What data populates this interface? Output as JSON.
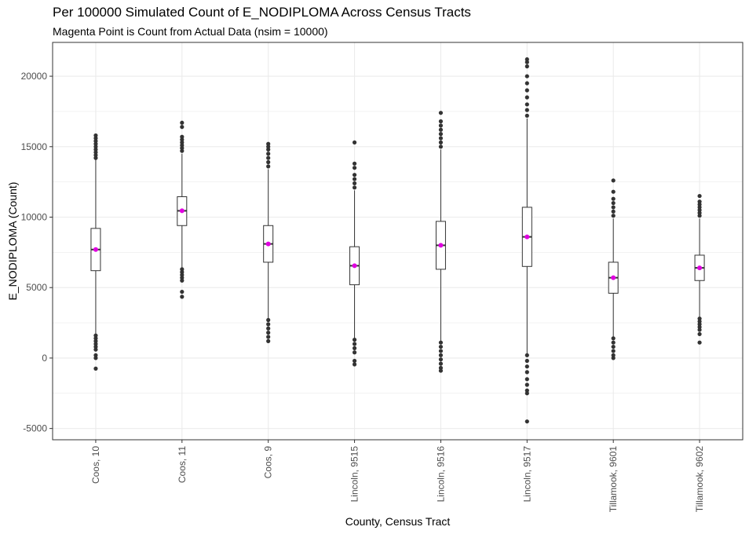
{
  "chart_data": {
    "type": "boxplot",
    "title": "Per 100000 Simulated Count of E_NODIPLOMA Across Census Tracts",
    "subtitle": "Magenta Point is Count from Actual Data (nsim = 10000)",
    "xlabel": "County, Census Tract",
    "ylabel": "E_NODIPLOMA (Count)",
    "ylim": [
      -5800,
      22400
    ],
    "yticks": [
      -5000,
      0,
      5000,
      10000,
      15000,
      20000
    ],
    "ytick_labels": [
      "-5000",
      "0",
      "5000",
      "10000",
      "15000",
      "20000"
    ],
    "grid": true,
    "colors": {
      "box": "#333333",
      "outlier": "#333333",
      "actual": "#e000e0",
      "grid": "#ebebeb",
      "panel_border": "#333333"
    },
    "categories": [
      "Coos, 10",
      "Coos, 11",
      "Coos, 9",
      "Lincoln, 9515",
      "Lincoln, 9516",
      "Lincoln, 9517",
      "Tillamook, 9601",
      "Tillamook, 9602"
    ],
    "boxes": [
      {
        "q1": 6200,
        "median": 7700,
        "q3": 9200,
        "whisker_low": 1700,
        "whisker_high": 14100,
        "actual": 7700,
        "outliers_high": [
          14200,
          14400,
          14600,
          14800,
          15000,
          15200,
          15400,
          15600,
          15800
        ],
        "outliers_low": [
          1600,
          1400,
          1200,
          1000,
          800,
          600,
          200,
          0,
          -750
        ]
      },
      {
        "q1": 9400,
        "median": 10450,
        "q3": 11450,
        "whisker_low": 6400,
        "whisker_high": 14500,
        "actual": 10450,
        "outliers_high": [
          14700,
          14900,
          15100,
          15300,
          15500,
          15700,
          16400,
          16700
        ],
        "outliers_low": [
          6300,
          6100,
          5900,
          5700,
          5500,
          4700,
          4350
        ]
      },
      {
        "q1": 6800,
        "median": 8100,
        "q3": 9400,
        "whisker_low": 2800,
        "whisker_high": 13400,
        "actual": 8100,
        "outliers_high": [
          13600,
          13900,
          14200,
          14500,
          14800,
          15000,
          15200
        ],
        "outliers_low": [
          2700,
          2400,
          2100,
          1800,
          1500,
          1200
        ]
      },
      {
        "q1": 5200,
        "median": 6550,
        "q3": 7900,
        "whisker_low": 1400,
        "whisker_high": 11900,
        "actual": 6550,
        "outliers_high": [
          12100,
          12400,
          12700,
          13000,
          13500,
          13800,
          15300
        ],
        "outliers_low": [
          1300,
          1000,
          700,
          400,
          -200,
          -450
        ]
      },
      {
        "q1": 6300,
        "median": 8000,
        "q3": 9700,
        "whisker_low": 1200,
        "whisker_high": 14800,
        "actual": 8000,
        "outliers_high": [
          15000,
          15300,
          15600,
          15900,
          16200,
          16500,
          16800,
          17400
        ],
        "outliers_low": [
          1100,
          800,
          500,
          200,
          -100,
          -400,
          -700,
          -900
        ]
      },
      {
        "q1": 6500,
        "median": 8600,
        "q3": 10700,
        "whisker_low": 300,
        "whisker_high": 17000,
        "actual": 8600,
        "outliers_high": [
          17200,
          17600,
          18000,
          18500,
          19000,
          19500,
          20000,
          20700,
          21000,
          21200
        ],
        "outliers_low": [
          200,
          -200,
          -600,
          -1000,
          -1500,
          -1900,
          -2300,
          -2500,
          -4500
        ]
      },
      {
        "q1": 4600,
        "median": 5700,
        "q3": 6800,
        "whisker_low": 1500,
        "whisker_high": 9900,
        "actual": 5700,
        "outliers_high": [
          10100,
          10400,
          10700,
          11000,
          11300,
          11800,
          12600
        ],
        "outliers_low": [
          1400,
          1100,
          800,
          500,
          200,
          0
        ]
      },
      {
        "q1": 5500,
        "median": 6400,
        "q3": 7300,
        "whisker_low": 2900,
        "whisker_high": 9900,
        "actual": 6400,
        "outliers_high": [
          10100,
          10300,
          10500,
          10700,
          10900,
          11100,
          11500
        ],
        "outliers_low": [
          2800,
          2600,
          2400,
          2200,
          2000,
          1700,
          1100
        ]
      }
    ]
  }
}
